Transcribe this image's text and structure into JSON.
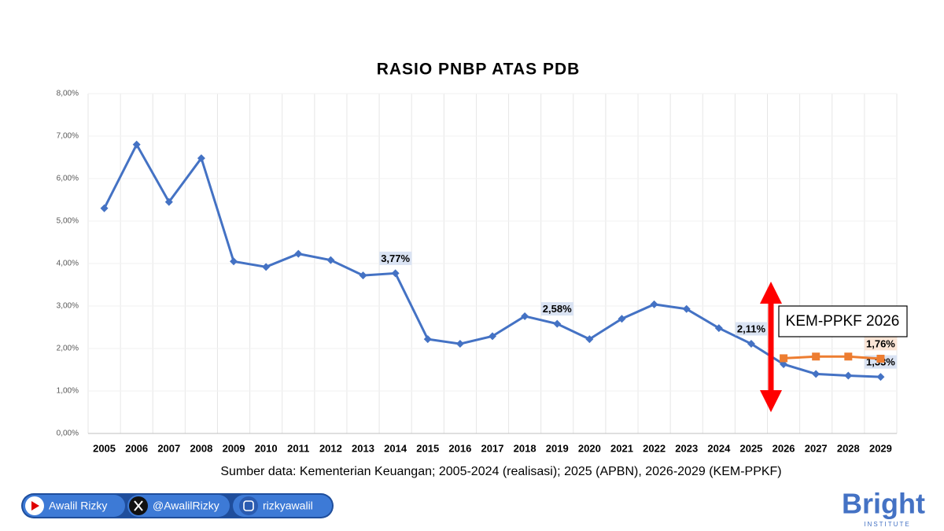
{
  "chart_data": {
    "type": "line",
    "title": "RASIO PNBP ATAS PDB",
    "categories": [
      "2005",
      "2006",
      "2007",
      "2008",
      "2009",
      "2010",
      "2011",
      "2012",
      "2013",
      "2014",
      "2015",
      "2016",
      "2017",
      "2018",
      "2019",
      "2020",
      "2021",
      "2022",
      "2023",
      "2024",
      "2025",
      "2026",
      "2027",
      "2028",
      "2029"
    ],
    "series": [
      {
        "color": "#4472c4",
        "marker": "diamond",
        "values": [
          5.3,
          6.8,
          5.45,
          6.48,
          4.05,
          3.92,
          4.23,
          4.08,
          3.72,
          3.77,
          2.22,
          2.11,
          2.29,
          2.76,
          2.58,
          2.22,
          2.7,
          3.04,
          2.93,
          2.48,
          2.11,
          1.63,
          1.4,
          1.36,
          1.33
        ],
        "value_labels": [
          null,
          null,
          null,
          null,
          null,
          null,
          null,
          null,
          null,
          "3,77%",
          null,
          null,
          null,
          null,
          "2,58%",
          null,
          null,
          null,
          null,
          null,
          "2,11%",
          null,
          null,
          null,
          "1,33%"
        ],
        "label_bg": "#dae3f3"
      },
      {
        "color": "#ed7d31",
        "marker": "square",
        "values": [
          null,
          null,
          null,
          null,
          null,
          null,
          null,
          null,
          null,
          null,
          null,
          null,
          null,
          null,
          null,
          null,
          null,
          null,
          null,
          null,
          null,
          1.77,
          1.81,
          1.81,
          1.76
        ],
        "value_labels": [
          null,
          null,
          null,
          null,
          null,
          null,
          null,
          null,
          null,
          null,
          null,
          null,
          null,
          null,
          null,
          null,
          null,
          null,
          null,
          null,
          null,
          null,
          null,
          null,
          "1,76%"
        ],
        "label_bg": "#fbe5d6"
      }
    ],
    "ylim": [
      0,
      8
    ],
    "yticks": [
      {
        "value": 0,
        "label": "0,00%"
      },
      {
        "value": 1,
        "label": "1,00%"
      },
      {
        "value": 2,
        "label": "2,00%"
      },
      {
        "value": 3,
        "label": "3,00%"
      },
      {
        "value": 4,
        "label": "4,00%"
      },
      {
        "value": 5,
        "label": "5,00%"
      },
      {
        "value": 6,
        "label": "6,00%"
      },
      {
        "value": 7,
        "label": "7,00%"
      },
      {
        "value": 8,
        "label": "8,00%"
      }
    ],
    "grid": true,
    "annotation": "KEM-PPKF 2026",
    "source": "Sumber data: Kementerian Keuangan; 2005-2024 (realisasi); 2025 (APBN), 2026-2029 (KEM-PPKF)"
  },
  "footer": {
    "youtube": "Awalil Rizky",
    "x": "@AwalilRizky",
    "instagram": "rizkyawalil",
    "logo": "Bright",
    "logo_sub": "INSTITUTE"
  }
}
